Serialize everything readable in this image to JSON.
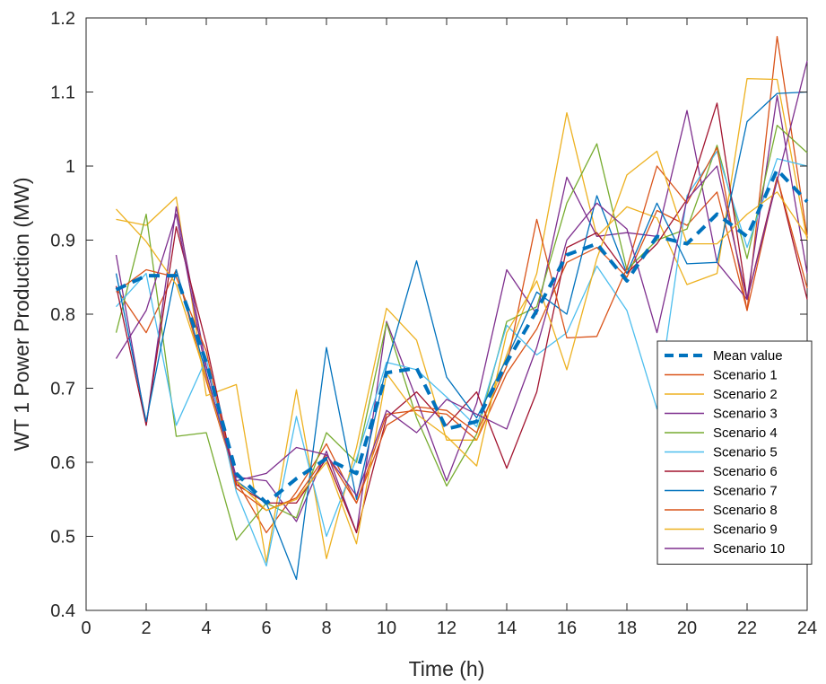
{
  "chart_data": {
    "type": "line",
    "title": "",
    "xlabel": "Time (h)",
    "ylabel": "WT 1 Power Production (MW)",
    "xlim": [
      0,
      24
    ],
    "ylim": [
      0.4,
      1.2
    ],
    "xticks": [
      0,
      2,
      4,
      6,
      8,
      10,
      12,
      14,
      16,
      18,
      20,
      22,
      24
    ],
    "yticks": [
      0.4,
      0.5,
      0.6,
      0.7,
      0.8,
      0.9,
      1,
      1.1,
      1.2
    ],
    "ytick_labels": [
      "0.4",
      "0.5",
      "0.6",
      "0.7",
      "0.8",
      "0.9",
      "1",
      "1.1",
      "1.2"
    ],
    "grid": false,
    "legend_position": "bottom-right",
    "x": [
      1,
      2,
      3,
      4,
      5,
      6,
      7,
      8,
      9,
      10,
      11,
      12,
      13,
      14,
      15,
      16,
      17,
      18,
      19,
      20,
      21,
      22,
      23,
      24
    ],
    "series": [
      {
        "name": "Mean value",
        "color": "#0072BD",
        "dashed": true,
        "values": [
          0.833,
          0.852,
          0.852,
          0.735,
          0.585,
          0.545,
          0.578,
          0.605,
          0.585,
          0.721,
          0.727,
          0.645,
          0.655,
          0.735,
          0.805,
          0.88,
          0.895,
          0.845,
          0.905,
          0.895,
          0.935,
          0.905,
          0.995,
          0.952
        ]
      },
      {
        "name": "Scenario 1",
        "color": "#D95319",
        "values": [
          0.835,
          0.775,
          0.86,
          0.71,
          0.575,
          0.505,
          0.56,
          0.625,
          0.545,
          0.665,
          0.67,
          0.665,
          0.63,
          0.72,
          0.78,
          0.87,
          0.89,
          0.85,
          0.94,
          0.92,
          0.965,
          0.805,
          1.175,
          0.905
        ]
      },
      {
        "name": "Scenario 2",
        "color": "#EDB120",
        "values": [
          0.928,
          0.92,
          0.958,
          0.69,
          0.705,
          0.465,
          0.698,
          0.47,
          0.62,
          0.808,
          0.765,
          0.63,
          0.63,
          0.745,
          0.855,
          1.072,
          0.905,
          0.945,
          0.93,
          0.84,
          0.855,
          1.118,
          1.117,
          0.9
        ]
      },
      {
        "name": "Scenario 3",
        "color": "#7E2F8E",
        "values": [
          0.88,
          0.65,
          0.945,
          0.73,
          0.58,
          0.575,
          0.52,
          0.615,
          0.505,
          0.79,
          0.685,
          0.575,
          0.68,
          0.86,
          0.8,
          0.985,
          0.905,
          0.91,
          0.905,
          1.075,
          0.87,
          0.82,
          1.095,
          0.855
        ]
      },
      {
        "name": "Scenario 4",
        "color": "#77AC30",
        "values": [
          0.775,
          0.935,
          0.635,
          0.64,
          0.495,
          0.545,
          0.525,
          0.64,
          0.6,
          0.788,
          0.66,
          0.568,
          0.638,
          0.79,
          0.81,
          0.95,
          1.03,
          0.86,
          0.9,
          0.915,
          1.028,
          0.875,
          1.055,
          1.018
        ]
      },
      {
        "name": "Scenario 5",
        "color": "#4DBEEE",
        "values": [
          0.81,
          0.855,
          0.65,
          0.74,
          0.56,
          0.46,
          0.662,
          0.5,
          0.605,
          0.735,
          0.725,
          0.688,
          0.648,
          0.785,
          0.745,
          0.775,
          0.865,
          0.805,
          0.672,
          0.96,
          1.02,
          0.89,
          1.01,
          1.0
        ]
      },
      {
        "name": "Scenario 6",
        "color": "#A2142F",
        "values": [
          0.838,
          0.65,
          0.918,
          0.76,
          0.57,
          0.545,
          0.545,
          0.605,
          0.505,
          0.66,
          0.695,
          0.65,
          0.695,
          0.592,
          0.695,
          0.89,
          0.91,
          0.855,
          0.895,
          0.955,
          1.085,
          0.82,
          0.985,
          0.82
        ]
      },
      {
        "name": "Scenario 7",
        "color": "#0072BD",
        "values": [
          0.855,
          0.655,
          0.86,
          0.72,
          0.575,
          0.545,
          0.442,
          0.755,
          0.55,
          0.73,
          0.872,
          0.715,
          0.66,
          0.74,
          0.83,
          0.8,
          0.96,
          0.855,
          0.95,
          0.868,
          0.87,
          1.06,
          1.098,
          1.1
        ]
      },
      {
        "name": "Scenario 8",
        "color": "#D95319",
        "values": [
          0.83,
          0.86,
          0.85,
          0.75,
          0.565,
          0.535,
          0.552,
          0.61,
          0.545,
          0.65,
          0.675,
          0.67,
          0.64,
          0.73,
          0.928,
          0.768,
          0.77,
          0.862,
          1.0,
          0.95,
          1.025,
          0.805,
          0.985,
          0.835
        ]
      },
      {
        "name": "Scenario 9",
        "color": "#EDB120",
        "values": [
          0.942,
          0.898,
          0.84,
          0.715,
          0.575,
          0.535,
          0.55,
          0.6,
          0.49,
          0.72,
          0.665,
          0.635,
          0.595,
          0.775,
          0.845,
          0.725,
          0.875,
          0.988,
          1.02,
          0.895,
          0.895,
          0.935,
          0.965,
          0.905
        ]
      },
      {
        "name": "Scenario 10",
        "color": "#7E2F8E",
        "values": [
          0.74,
          0.805,
          0.935,
          0.72,
          0.575,
          0.585,
          0.62,
          0.61,
          0.555,
          0.67,
          0.64,
          0.685,
          0.665,
          0.645,
          0.755,
          0.9,
          0.95,
          0.915,
          0.775,
          0.955,
          1.0,
          0.82,
          0.98,
          1.142
        ]
      }
    ]
  }
}
